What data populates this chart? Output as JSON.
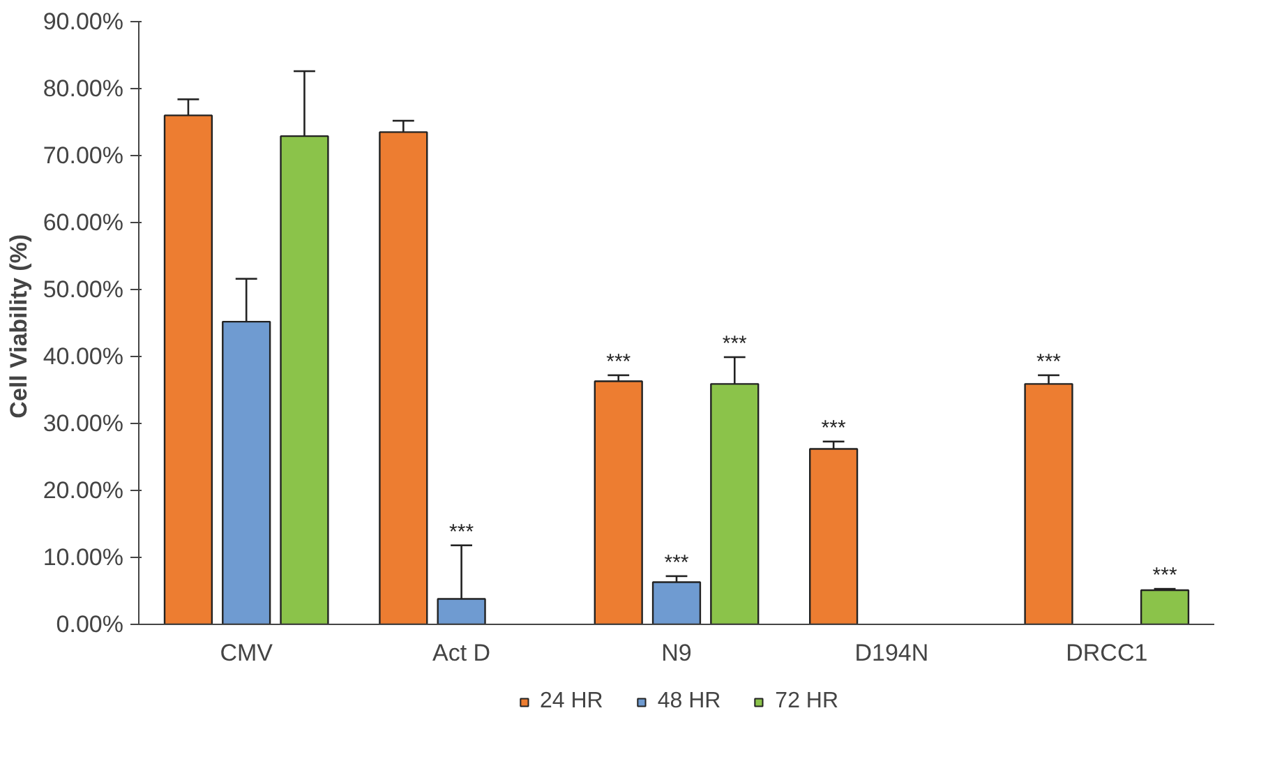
{
  "chart_data": {
    "type": "bar",
    "ylabel": "Cell Viability  (%)",
    "categories": [
      "CMV",
      "Act D",
      "N9",
      "D194N",
      "DRCC1"
    ],
    "series": [
      {
        "name": "24 HR",
        "color": "#ed7d31",
        "values": [
          76.0,
          73.5,
          36.3,
          26.2,
          35.9
        ],
        "errors": [
          [
            76.0,
            78.4
          ],
          [
            73.5,
            75.2
          ],
          [
            36.3,
            37.2
          ],
          [
            26.2,
            27.3
          ],
          [
            35.9,
            37.2
          ]
        ],
        "value_labels": [
          null,
          null,
          "***",
          "***",
          "***"
        ]
      },
      {
        "name": "48 HR",
        "color": "#6f9bd1",
        "values": [
          45.2,
          3.8,
          6.3,
          null,
          null
        ],
        "errors": [
          [
            45.2,
            51.6
          ],
          [
            3.8,
            11.8
          ],
          [
            6.3,
            7.2
          ],
          null,
          null
        ],
        "value_labels": [
          null,
          "***",
          "***",
          null,
          null
        ]
      },
      {
        "name": "72 HR",
        "color": "#8bc34a",
        "values": [
          72.9,
          null,
          35.9,
          null,
          5.1
        ],
        "errors": [
          [
            72.9,
            82.6
          ],
          null,
          [
            35.9,
            39.9
          ],
          null,
          [
            5.1,
            5.3
          ]
        ],
        "value_labels": [
          null,
          null,
          "***",
          null,
          "***"
        ]
      }
    ],
    "ylim": [
      0,
      90
    ],
    "yticks": [
      {
        "value": 0,
        "label": "0.00%"
      },
      {
        "value": 10,
        "label": "10.00%"
      },
      {
        "value": 20,
        "label": "20.00%"
      },
      {
        "value": 30,
        "label": "30.00%"
      },
      {
        "value": 40,
        "label": "40.00%"
      },
      {
        "value": 50,
        "label": "50.00%"
      },
      {
        "value": 60,
        "label": "60.00%"
      },
      {
        "value": 70,
        "label": "70.00%"
      },
      {
        "value": 80,
        "label": "80.00%"
      },
      {
        "value": 90,
        "label": "90.00%"
      }
    ],
    "grid": false,
    "legend": "bottom"
  }
}
